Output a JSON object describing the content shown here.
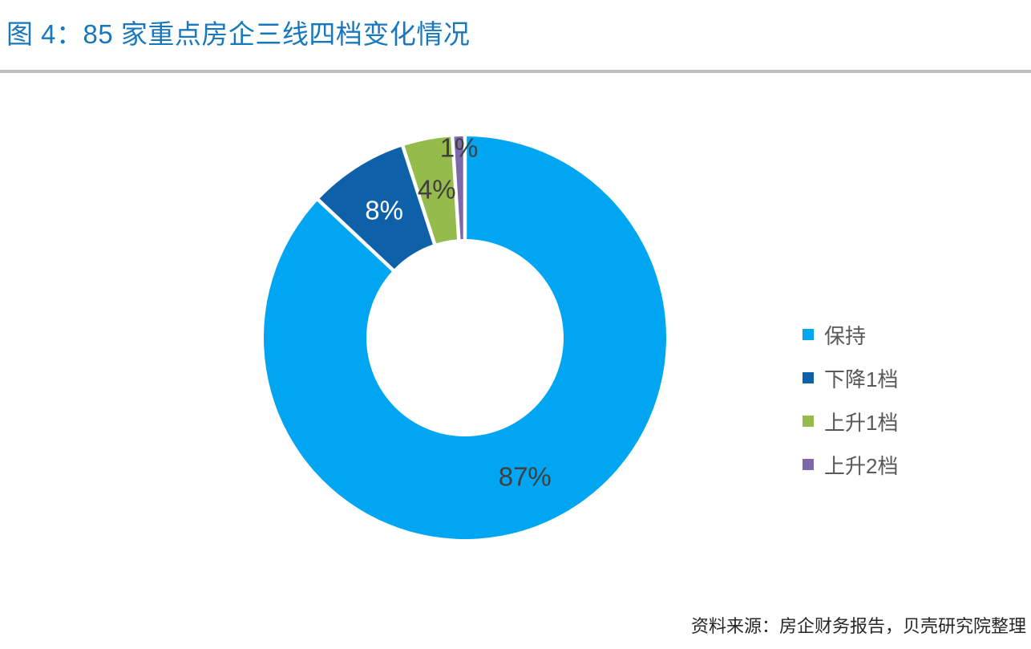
{
  "figure": {
    "title": "图 4：85 家重点房企三线四档变化情况",
    "source_note": "资料来源：房企财务报告，贝壳研究院整理"
  },
  "colors": {
    "title_text": "#1878BE",
    "divider": "#BEBEBE",
    "legend_text": "#595959",
    "source_text": "#262626",
    "data_label_dark": "#404040",
    "data_label_light": "#FFFFFF"
  },
  "chart_data": {
    "type": "pie",
    "subtype": "donut",
    "title": "85家重点房企三线四档变化情况",
    "categories": [
      "保持",
      "下降1档",
      "上升1档",
      "上升2档"
    ],
    "values": [
      87,
      8,
      4,
      1
    ],
    "unit": "percent",
    "data_labels": [
      "87%",
      "8%",
      "4%",
      "1%"
    ],
    "label_colors": [
      "#404040",
      "#FFFFFF",
      "#404040",
      "#404040"
    ],
    "colors": [
      "#00A6F2",
      "#0E61A9",
      "#95BB4D",
      "#7C68AB"
    ],
    "legend_position": "right",
    "legend_entries": [
      "保持",
      "下降1档",
      "上升1档",
      "上升2档"
    ],
    "start_angle_deg": 0,
    "direction": "clockwise",
    "hole_ratio": 0.49
  }
}
